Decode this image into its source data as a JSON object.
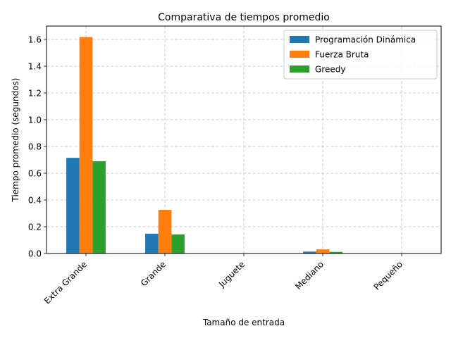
{
  "chart_data": {
    "type": "bar",
    "title": "Comparativa de tiempos promedio",
    "xlabel": "Tamaño de entrada",
    "ylabel": "Tiempo promedio (segundos)",
    "categories": [
      "Extra Grande",
      "Grande",
      "Juguete",
      "Mediano",
      "Pequeño"
    ],
    "series": [
      {
        "name": "Programación Dinámica",
        "color": "#1f77b4",
        "values": [
          0.715,
          0.148,
          0.0005,
          0.014,
          0.0005
        ]
      },
      {
        "name": "Fuerza Bruta",
        "color": "#ff7f0e",
        "values": [
          1.618,
          0.326,
          0.001,
          0.031,
          0.001
        ]
      },
      {
        "name": "Greedy",
        "color": "#2ca02c",
        "values": [
          0.69,
          0.143,
          0.0005,
          0.012,
          0.0005
        ]
      }
    ],
    "yticks": [
      "0.0",
      "0.2",
      "0.4",
      "0.6",
      "0.8",
      "1.0",
      "1.2",
      "1.4",
      "1.6"
    ],
    "ylim": [
      0,
      1.7
    ],
    "grid": true,
    "grid_style": "dashed",
    "legend_position": "top-right"
  }
}
